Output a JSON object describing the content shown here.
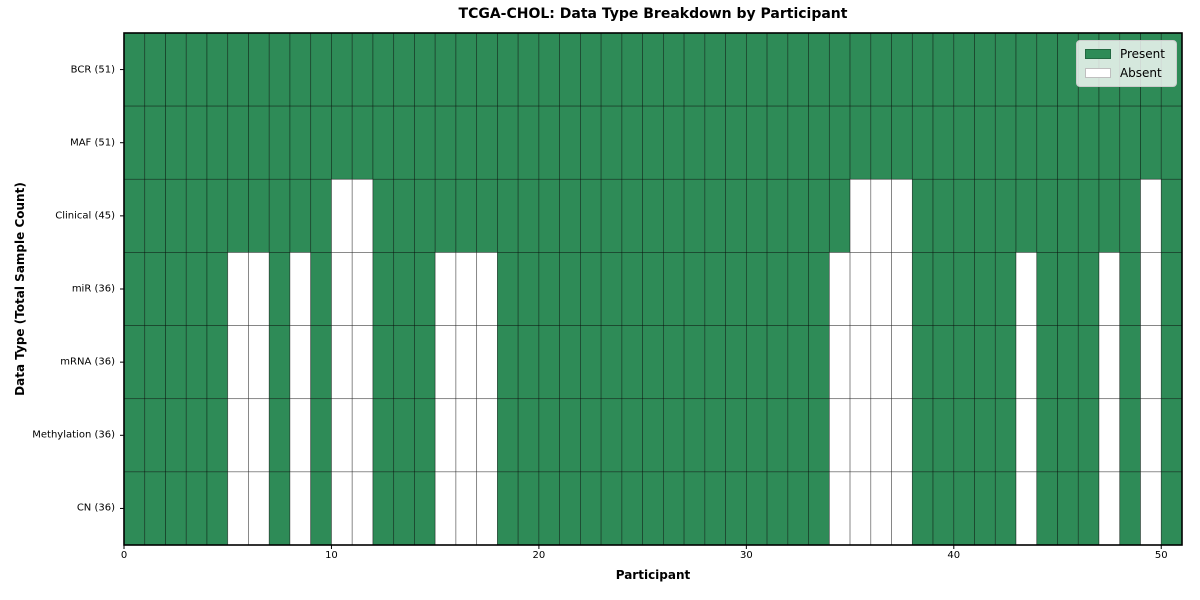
{
  "chart_data": {
    "type": "heatmap",
    "title": "TCGA-CHOL: Data Type Breakdown by Participant",
    "xlabel": "Participant",
    "ylabel": "Data Type (Total Sample Count)",
    "n_participants": 51,
    "x_range": [
      0,
      51
    ],
    "x_ticks": [
      0,
      10,
      20,
      30,
      40,
      50
    ],
    "cell_states": [
      "Present",
      "Absent"
    ],
    "rows": [
      {
        "label": "BCR (51)",
        "total_samples": 51,
        "absent_participants": []
      },
      {
        "label": "MAF (51)",
        "total_samples": 51,
        "absent_participants": []
      },
      {
        "label": "Clinical (45)",
        "total_samples": 45,
        "absent_participants": [
          10,
          11,
          35,
          36,
          37,
          49
        ]
      },
      {
        "label": "miR (36)",
        "total_samples": 36,
        "absent_participants": [
          5,
          6,
          8,
          10,
          11,
          15,
          16,
          17,
          34,
          35,
          36,
          37,
          43,
          47,
          49
        ]
      },
      {
        "label": "mRNA (36)",
        "total_samples": 36,
        "absent_participants": [
          5,
          6,
          8,
          10,
          11,
          15,
          16,
          17,
          34,
          35,
          36,
          37,
          43,
          47,
          49
        ]
      },
      {
        "label": "Methylation (36)",
        "total_samples": 36,
        "absent_participants": [
          5,
          6,
          8,
          10,
          11,
          15,
          16,
          17,
          34,
          35,
          36,
          37,
          43,
          47,
          49
        ]
      },
      {
        "label": "CN (36)",
        "total_samples": 36,
        "absent_participants": [
          5,
          6,
          8,
          10,
          11,
          15,
          16,
          17,
          34,
          35,
          36,
          37,
          43,
          47,
          49
        ]
      }
    ],
    "legend": {
      "position": "upper right",
      "entries": [
        {
          "label": "Present",
          "color": "#2E8B57"
        },
        {
          "label": "Absent",
          "color": "#ffffff"
        }
      ]
    },
    "colors": {
      "present": "#2E8B57",
      "absent": "#ffffff",
      "cell_edge": "rgba(0,0,0,0.5)",
      "spine": "#000000"
    },
    "grid": true
  }
}
